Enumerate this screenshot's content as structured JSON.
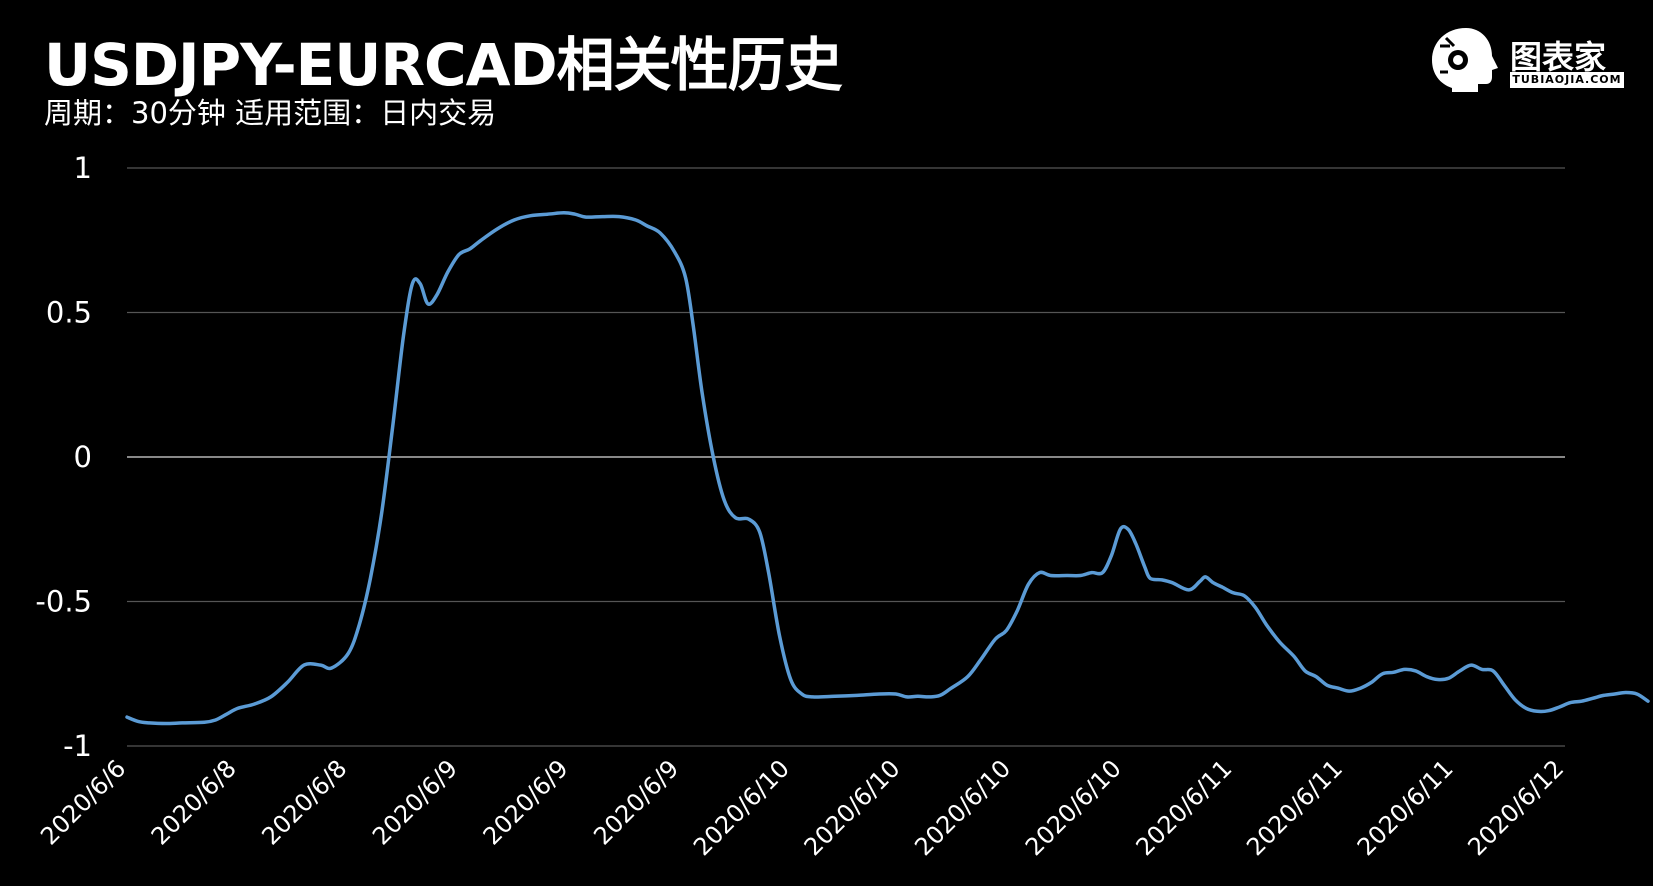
{
  "header": {
    "title": "USDJPY-EURCAD相关性历史",
    "subtitle": "周期：30分钟  适用范围：日内交易"
  },
  "logo": {
    "name": "图表家",
    "sub": "TUBIAOJIA.COM",
    "icon": "robot-head-icon"
  },
  "colors": {
    "background": "#000000",
    "line": "#5b9bd5",
    "grid": "#555555",
    "zero_line": "#888888",
    "text": "#ffffff"
  },
  "chart_data": {
    "type": "line",
    "title": "USDJPY-EURCAD相关性历史",
    "xlabel": "",
    "ylabel": "",
    "ylim": [
      -1,
      1
    ],
    "yticks": [
      1,
      0.5,
      0,
      -0.5,
      -1
    ],
    "grid": true,
    "legend": "none",
    "x_tick_labels": [
      "2020/6/6",
      "2020/6/8",
      "2020/6/8",
      "2020/6/9",
      "2020/6/9",
      "2020/6/9",
      "2020/6/10",
      "2020/6/10",
      "2020/6/10",
      "2020/6/10",
      "2020/6/11",
      "2020/6/11",
      "2020/6/11",
      "2020/6/12"
    ],
    "series": [
      {
        "color": "#5b9bd5",
        "points": [
          [
            0,
            -0.9
          ],
          [
            0.1,
            -0.915
          ],
          [
            0.2,
            -0.92
          ],
          [
            0.35,
            -0.922
          ],
          [
            0.5,
            -0.92
          ],
          [
            0.7,
            -0.918
          ],
          [
            0.8,
            -0.91
          ],
          [
            0.9,
            -0.89
          ],
          [
            1.0,
            -0.87
          ],
          [
            1.15,
            -0.855
          ],
          [
            1.3,
            -0.83
          ],
          [
            1.45,
            -0.78
          ],
          [
            1.6,
            -0.72
          ],
          [
            1.75,
            -0.72
          ],
          [
            1.85,
            -0.73
          ],
          [
            2.0,
            -0.68
          ],
          [
            2.1,
            -0.58
          ],
          [
            2.2,
            -0.42
          ],
          [
            2.3,
            -0.2
          ],
          [
            2.4,
            0.1
          ],
          [
            2.5,
            0.42
          ],
          [
            2.58,
            0.6
          ],
          [
            2.65,
            0.6
          ],
          [
            2.72,
            0.53
          ],
          [
            2.8,
            0.56
          ],
          [
            2.9,
            0.64
          ],
          [
            3.0,
            0.7
          ],
          [
            3.1,
            0.72
          ],
          [
            3.2,
            0.75
          ],
          [
            3.35,
            0.79
          ],
          [
            3.5,
            0.82
          ],
          [
            3.65,
            0.835
          ],
          [
            3.8,
            0.84
          ],
          [
            3.95,
            0.845
          ],
          [
            4.05,
            0.84
          ],
          [
            4.15,
            0.83
          ],
          [
            4.3,
            0.832
          ],
          [
            4.45,
            0.832
          ],
          [
            4.6,
            0.82
          ],
          [
            4.7,
            0.8
          ],
          [
            4.82,
            0.775
          ],
          [
            4.95,
            0.71
          ],
          [
            5.05,
            0.62
          ],
          [
            5.12,
            0.45
          ],
          [
            5.2,
            0.22
          ],
          [
            5.3,
            0.0
          ],
          [
            5.4,
            -0.15
          ],
          [
            5.5,
            -0.21
          ],
          [
            5.62,
            -0.215
          ],
          [
            5.72,
            -0.26
          ],
          [
            5.8,
            -0.4
          ],
          [
            5.9,
            -0.62
          ],
          [
            6.0,
            -0.77
          ],
          [
            6.1,
            -0.82
          ],
          [
            6.2,
            -0.83
          ],
          [
            6.4,
            -0.828
          ],
          [
            6.6,
            -0.825
          ],
          [
            6.8,
            -0.82
          ],
          [
            6.95,
            -0.82
          ],
          [
            7.05,
            -0.83
          ],
          [
            7.15,
            -0.828
          ],
          [
            7.25,
            -0.83
          ],
          [
            7.35,
            -0.825
          ],
          [
            7.45,
            -0.8
          ],
          [
            7.6,
            -0.76
          ],
          [
            7.72,
            -0.7
          ],
          [
            7.85,
            -0.63
          ],
          [
            7.95,
            -0.6
          ],
          [
            8.05,
            -0.53
          ],
          [
            8.15,
            -0.44
          ],
          [
            8.25,
            -0.4
          ],
          [
            8.35,
            -0.41
          ],
          [
            8.5,
            -0.41
          ],
          [
            8.62,
            -0.41
          ],
          [
            8.72,
            -0.4
          ],
          [
            8.82,
            -0.4
          ],
          [
            8.9,
            -0.34
          ],
          [
            8.98,
            -0.25
          ],
          [
            9.05,
            -0.25
          ],
          [
            9.12,
            -0.3
          ],
          [
            9.2,
            -0.38
          ],
          [
            9.25,
            -0.42
          ],
          [
            9.35,
            -0.425
          ],
          [
            9.45,
            -0.435
          ],
          [
            9.6,
            -0.46
          ],
          [
            9.7,
            -0.43
          ],
          [
            9.75,
            -0.415
          ],
          [
            9.82,
            -0.435
          ],
          [
            9.9,
            -0.45
          ],
          [
            10.0,
            -0.47
          ],
          [
            10.1,
            -0.48
          ],
          [
            10.2,
            -0.52
          ],
          [
            10.3,
            -0.58
          ],
          [
            10.42,
            -0.64
          ],
          [
            10.55,
            -0.69
          ],
          [
            10.65,
            -0.74
          ],
          [
            10.75,
            -0.76
          ],
          [
            10.85,
            -0.79
          ],
          [
            10.95,
            -0.8
          ],
          [
            11.05,
            -0.81
          ],
          [
            11.15,
            -0.8
          ],
          [
            11.25,
            -0.78
          ],
          [
            11.35,
            -0.75
          ],
          [
            11.45,
            -0.745
          ],
          [
            11.55,
            -0.735
          ],
          [
            11.65,
            -0.74
          ],
          [
            11.75,
            -0.76
          ],
          [
            11.85,
            -0.77
          ],
          [
            11.95,
            -0.765
          ],
          [
            12.05,
            -0.74
          ],
          [
            12.15,
            -0.72
          ],
          [
            12.25,
            -0.735
          ],
          [
            12.35,
            -0.74
          ],
          [
            12.45,
            -0.79
          ],
          [
            12.55,
            -0.84
          ],
          [
            12.65,
            -0.87
          ],
          [
            12.75,
            -0.88
          ],
          [
            12.85,
            -0.878
          ],
          [
            12.95,
            -0.865
          ],
          [
            13.05,
            -0.85
          ],
          [
            13.15,
            -0.845
          ],
          [
            13.25,
            -0.835
          ],
          [
            13.35,
            -0.825
          ],
          [
            13.45,
            -0.82
          ],
          [
            13.55,
            -0.815
          ],
          [
            13.65,
            -0.82
          ],
          [
            13.75,
            -0.845
          ]
        ]
      }
    ]
  }
}
